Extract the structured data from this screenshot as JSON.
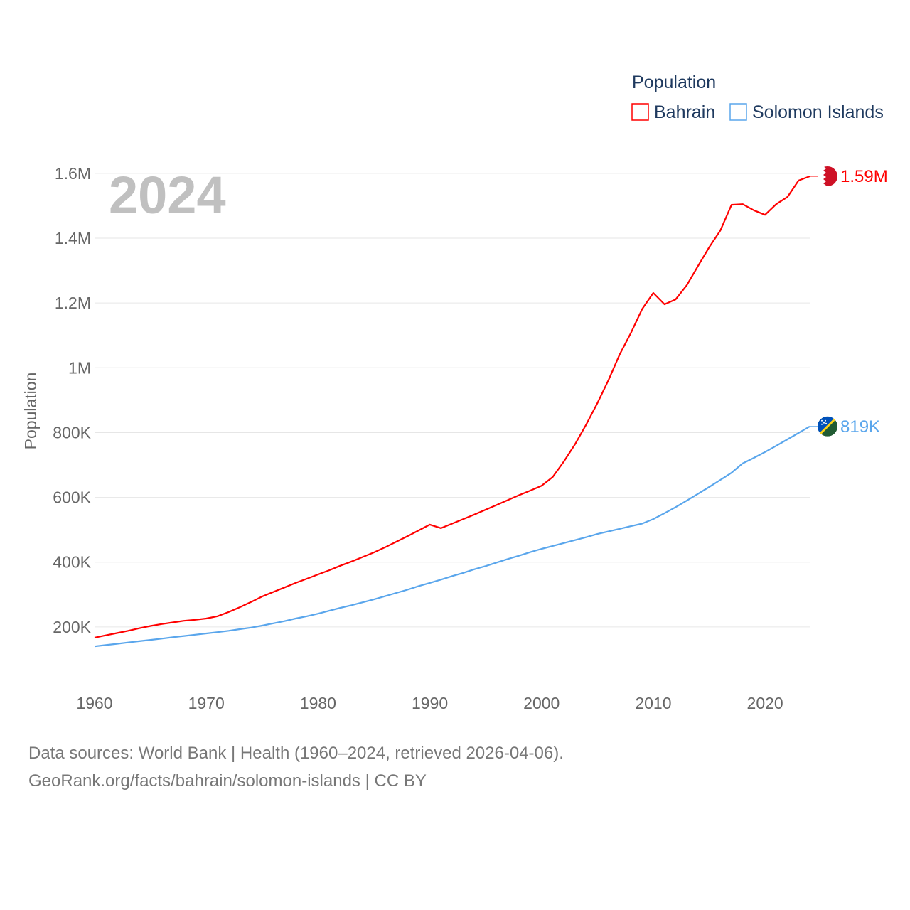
{
  "chart_data": {
    "type": "line",
    "title": "Population",
    "year_label": "2024",
    "ylabel": "Population",
    "xlabel": "",
    "xlim": [
      1960,
      2024
    ],
    "ylim": [
      0,
      1600000
    ],
    "grid": true,
    "x_ticks": [
      "1960",
      "1970",
      "1980",
      "1990",
      "2000",
      "2010",
      "2020"
    ],
    "x_tick_values": [
      1960,
      1970,
      1980,
      1990,
      2000,
      2010,
      2020
    ],
    "y_ticks": [
      "200K",
      "400K",
      "600K",
      "800K",
      "1M",
      "1.2M",
      "1.4M",
      "1.6M"
    ],
    "y_tick_values": [
      200000,
      400000,
      600000,
      800000,
      1000000,
      1200000,
      1400000,
      1600000
    ],
    "legend": {
      "title": "Population",
      "placement": "top-right"
    },
    "x": [
      1960,
      1961,
      1962,
      1963,
      1964,
      1965,
      1966,
      1967,
      1968,
      1969,
      1970,
      1971,
      1972,
      1973,
      1974,
      1975,
      1976,
      1977,
      1978,
      1979,
      1980,
      1981,
      1982,
      1983,
      1984,
      1985,
      1986,
      1987,
      1988,
      1989,
      1990,
      1991,
      1992,
      1993,
      1994,
      1995,
      1996,
      1997,
      1998,
      1999,
      2000,
      2001,
      2002,
      2003,
      2004,
      2005,
      2006,
      2007,
      2008,
      2009,
      2010,
      2011,
      2012,
      2013,
      2014,
      2015,
      2016,
      2017,
      2018,
      2019,
      2020,
      2021,
      2022,
      2023,
      2024
    ],
    "series": [
      {
        "name": "Bahrain",
        "color": "#ff0000",
        "end_label": "1.59M",
        "flag": "bahrain-flag",
        "values": [
          167000,
          174000,
          181000,
          188000,
          196000,
          203000,
          209000,
          214000,
          219000,
          222000,
          226000,
          233000,
          246000,
          261000,
          277000,
          294000,
          308000,
          322000,
          336000,
          349000,
          362000,
          375000,
          389000,
          402000,
          416000,
          430000,
          446000,
          463000,
          480000,
          498000,
          516000,
          505000,
          519000,
          533000,
          547000,
          562000,
          577000,
          592000,
          607000,
          621000,
          636000,
          663000,
          711000,
          764000,
          825000,
          891000,
          963000,
          1042000,
          1108000,
          1181000,
          1231000,
          1196000,
          1211000,
          1255000,
          1314000,
          1372000,
          1424000,
          1503000,
          1505000,
          1486000,
          1472000,
          1505000,
          1527000,
          1578000,
          1591000
        ]
      },
      {
        "name": "Solomon Islands",
        "color": "#5aa6ec",
        "end_label": "819K",
        "flag": "solomon-islands-flag",
        "values": [
          140000,
          144000,
          148000,
          152000,
          156000,
          160000,
          164000,
          168000,
          172000,
          176000,
          180000,
          184000,
          188000,
          193000,
          198000,
          204000,
          211000,
          218000,
          226000,
          233000,
          241000,
          250000,
          259000,
          267000,
          276000,
          285000,
          295000,
          305000,
          315000,
          326000,
          336000,
          346000,
          357000,
          367000,
          378000,
          388000,
          399000,
          410000,
          420000,
          431000,
          441000,
          450000,
          459000,
          468000,
          477000,
          487000,
          495000,
          503000,
          511000,
          519000,
          533000,
          551000,
          570000,
          590000,
          611000,
          632000,
          654000,
          676000,
          705000,
          722000,
          740000,
          759000,
          779000,
          799000,
          819000
        ]
      }
    ]
  },
  "footer": {
    "line1": "Data sources: World Bank | Health (1960–2024, retrieved 2026-04-06).",
    "line2": "GeoRank.org/facts/bahrain/solomon-islands | CC BY"
  }
}
